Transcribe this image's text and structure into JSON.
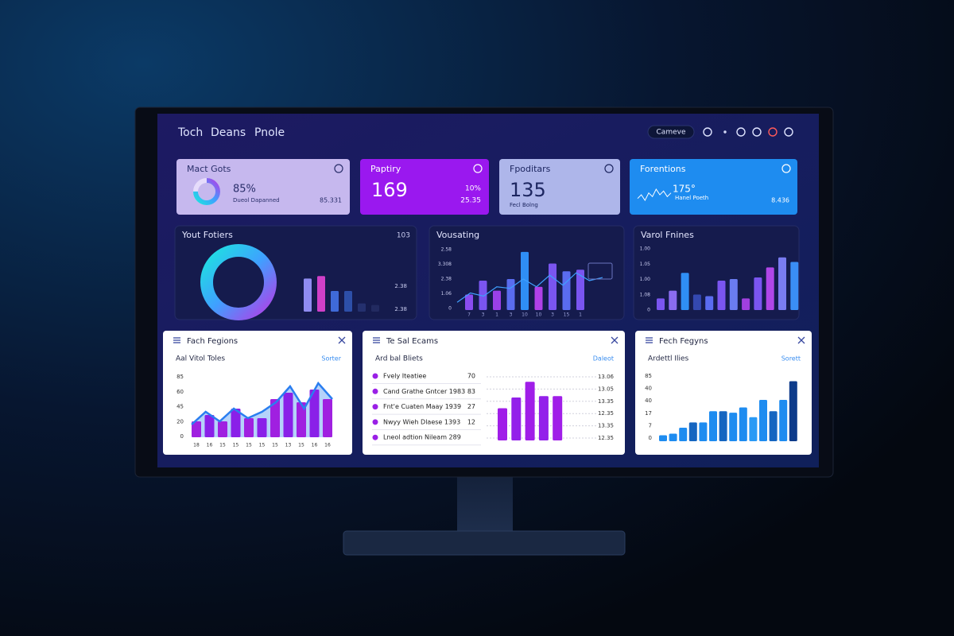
{
  "nav": {
    "items": [
      "Toch",
      "Deans",
      "Pnole"
    ],
    "button": "Cameve"
  },
  "kpis": [
    {
      "title": "Mact Gots",
      "value": "85%",
      "caption": "Dueol Dapanned",
      "side": "85.331",
      "ring": 75,
      "fill": "#c6b8ee",
      "ink": "#2a2f6a"
    },
    {
      "title": "Paptiry",
      "value": "169",
      "side": "10%",
      "side2": "25.35",
      "fill": "#9a18ef",
      "ink": "#ffffff"
    },
    {
      "title": "Fpoditars",
      "value": "135",
      "caption": "Fecl Bolng",
      "fill": "#aeb6ea",
      "ink": "#1d2660"
    },
    {
      "title": "Forentions",
      "value": "175°",
      "caption": "Hanel Poeth",
      "side": "8.436",
      "spark": [
        3,
        5,
        2,
        6,
        4,
        8,
        5,
        7,
        4,
        6
      ],
      "fill": "#1e8cf0",
      "ink": "#ffffff"
    }
  ],
  "panels": [
    {
      "title": "Yout Fotiers",
      "corner": "103",
      "y_labels": [
        "2.38",
        "2.38"
      ],
      "values": [
        40,
        43,
        25,
        25,
        10,
        8
      ],
      "ylim": [
        0,
        50
      ],
      "colors": [
        "#8f8cf0",
        "#d040c8",
        "#3f6ad8",
        "#2d4fa8",
        "#24306e",
        "#222a60"
      ]
    },
    {
      "title": "Vousating",
      "y_labels": [
        "2.58",
        "3.308",
        "2.38",
        "1.06",
        "0"
      ],
      "x_labels": [
        "7",
        "3",
        "1",
        "3",
        "10",
        "10",
        "3",
        "15",
        "1"
      ],
      "values": [
        20,
        38,
        25,
        40,
        75,
        30,
        60,
        50,
        52
      ],
      "line": [
        10,
        22,
        18,
        30,
        28,
        40,
        30,
        45,
        32,
        48,
        38,
        42
      ],
      "ylim": [
        0,
        80
      ],
      "colors": [
        "#8a4cf0",
        "#7a55f0",
        "#9a40e8",
        "#5a6cf0",
        "#2f8ef5",
        "#b040e8",
        "#7a55f0",
        "#5a6cf0",
        "#7a55f0"
      ],
      "line_color": "#3fa0ff"
    },
    {
      "title": "Varol Fnines",
      "y_labels": [
        "1.00",
        "1.05",
        "1.00",
        "1.08",
        "0"
      ],
      "values": [
        15,
        25,
        48,
        20,
        18,
        38,
        40,
        15,
        42,
        55,
        68,
        62
      ],
      "ylim": [
        0,
        80
      ],
      "colors": [
        "#7a55f0",
        "#8a6cf0",
        "#2f8ef5",
        "#3448b0",
        "#5a6cf0",
        "#7a55f0",
        "#6a7cf0",
        "#a040e0",
        "#7a55f0",
        "#b046e8",
        "#7a7cf0",
        "#3a8ef5"
      ]
    }
  ],
  "cards": [
    {
      "title": "Fach Fegions",
      "subtitle": "Aal Vitol Toles",
      "link": "Sorter",
      "y_labels": [
        "85",
        "60",
        "45",
        "20",
        "0"
      ],
      "x_labels": [
        "18",
        "16",
        "15",
        "15",
        "15",
        "15",
        "15",
        "13",
        "15",
        "16",
        "16"
      ],
      "values": [
        25,
        35,
        25,
        45,
        30,
        30,
        60,
        70,
        55,
        75,
        60
      ],
      "area": [
        20,
        40,
        25,
        45,
        30,
        40,
        55,
        80,
        45,
        85,
        60
      ],
      "ylim": [
        0,
        100
      ],
      "colors": [
        "#a020e0",
        "#8a20e8"
      ],
      "area_color": "#2a7ef0"
    },
    {
      "title": "Te Sal Ecams",
      "subtitle": "Ard bal Bliets",
      "link": "Daleot",
      "rows": [
        {
          "label": "Fvely Iteatiee",
          "value": "70"
        },
        {
          "label": "Cand Grathe Gntcer 1983",
          "value": "83"
        },
        {
          "label": "Fnt'e Cuaten Maay 1939",
          "value": "27"
        },
        {
          "label": "Nwyy Wieh Dlaese 1393",
          "value": "12"
        },
        {
          "label": "Lneol adtion Nileam 289"
        }
      ],
      "y_labels": [
        "13.06",
        "13.05",
        "13.35",
        "12.35",
        "13.35",
        "12.35"
      ],
      "values": [
        45,
        60,
        82,
        62,
        62
      ],
      "ylim": [
        0,
        100
      ],
      "colors": [
        "#a01ee8",
        "#9320ea"
      ]
    },
    {
      "title": "Fech Fegyns",
      "subtitle": "Ardettl Ilies",
      "link": "Sorett",
      "y_labels": [
        "85",
        "40",
        "40",
        "17",
        "7",
        "0"
      ],
      "values": [
        8,
        10,
        18,
        25,
        25,
        40,
        40,
        38,
        45,
        32,
        55,
        40,
        55,
        80
      ],
      "ylim": [
        0,
        90
      ],
      "colors": [
        "#1e8cf0",
        "#1e8cf0",
        "#1e8cf0",
        "#1565c0",
        "#1e8cf0",
        "#1e8cf0",
        "#1565c0",
        "#1e8cf0",
        "#1e8cf0",
        "#2a9af5",
        "#1e8cf0",
        "#1565c0",
        "#1e8cf0",
        "#0d3b8a"
      ]
    }
  ]
}
